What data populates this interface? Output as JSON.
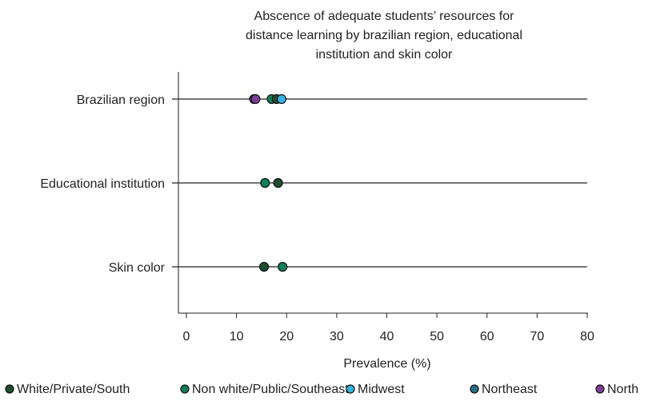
{
  "chart_data": {
    "type": "scatter",
    "title_lines": [
      "Abscence of adequate students’ resources for",
      "distance learning by brazilian region, educational",
      "institution and skin color"
    ],
    "xlabel": "Prevalence (%)",
    "ylabel": "",
    "xlim": [
      0,
      80
    ],
    "xticks": [
      "0",
      "10",
      "20",
      "30",
      "40",
      "50",
      "60",
      "70",
      "80"
    ],
    "categories": [
      "Brazilian region",
      "Educational institution",
      "Skin color"
    ],
    "legend_placement": "bottom",
    "grid": false,
    "series": [
      {
        "name": "White/Private/South",
        "color": "#1e4d2f",
        "values": [
          18.0,
          18.3,
          15.5
        ]
      },
      {
        "name": "Non white/Public/Southeast",
        "color": "#0e7f57",
        "values": [
          17.0,
          15.7,
          19.2
        ]
      },
      {
        "name": "Midwest",
        "color": "#35b3e0",
        "values": [
          19.0,
          null,
          null
        ]
      },
      {
        "name": "Northeast",
        "color": "#2b6f86",
        "values": [
          13.5,
          null,
          null
        ]
      },
      {
        "name": "North",
        "color": "#7b3f98",
        "values": [
          13.8,
          null,
          null
        ]
      }
    ]
  }
}
